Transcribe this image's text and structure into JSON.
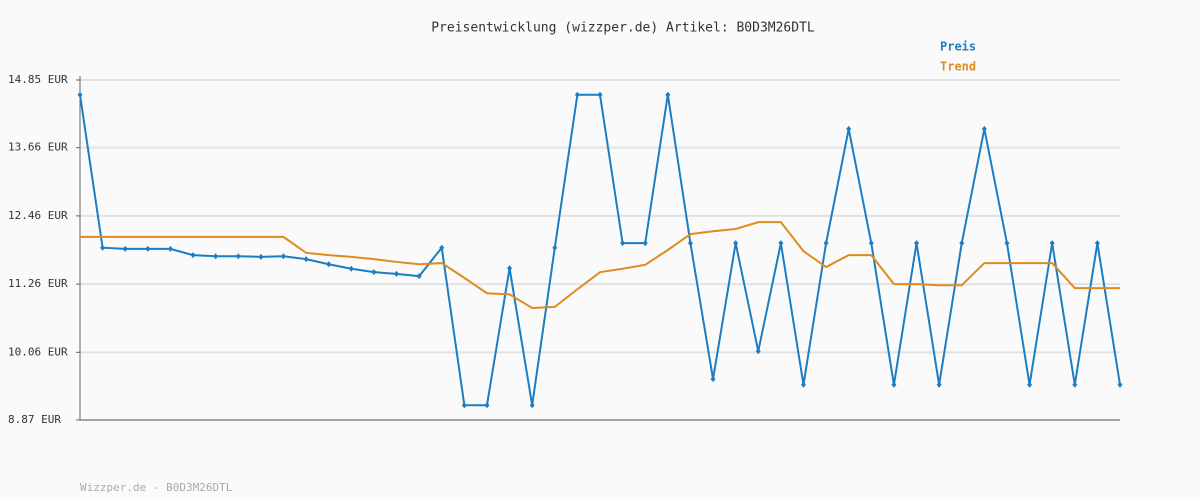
{
  "chart_data": {
    "type": "line",
    "title": "Preisentwicklung (wizzper.de) Artikel: B0D3M26DTL",
    "footer": "Wizzper.de - B0D3M26DTL",
    "categories": [
      null,
      null,
      null,
      null,
      null,
      null,
      null,
      null,
      null,
      null,
      null,
      null,
      null,
      null,
      null,
      null,
      null,
      null,
      null,
      null,
      null,
      null,
      null,
      null,
      null,
      null,
      null,
      null,
      null,
      null,
      null,
      null,
      null,
      null,
      null,
      null,
      null,
      null,
      null,
      null,
      null,
      null,
      null,
      null,
      null,
      null,
      null
    ],
    "series": [
      {
        "name": "Preis",
        "color": "#1b7dc3",
        "markers": true,
        "values": [
          14.59,
          11.9,
          11.88,
          11.88,
          11.88,
          11.77,
          11.75,
          11.75,
          11.74,
          11.75,
          11.7,
          11.61,
          11.53,
          11.47,
          11.44,
          11.4,
          11.9,
          9.13,
          9.13,
          11.54,
          9.13,
          11.9,
          14.59,
          14.59,
          11.98,
          11.98,
          14.59,
          11.98,
          9.59,
          11.98,
          10.08,
          11.98,
          9.49,
          11.98,
          13.99,
          11.98,
          9.49,
          11.98,
          9.49,
          11.98,
          13.99,
          11.98,
          9.49,
          11.98,
          9.49,
          11.98,
          9.49
        ]
      },
      {
        "name": "Trend",
        "color": "#e08a22",
        "markers": false,
        "values": [
          12.09,
          12.09,
          12.09,
          12.09,
          12.09,
          12.09,
          12.09,
          12.09,
          12.09,
          12.09,
          11.81,
          11.77,
          11.74,
          11.7,
          11.65,
          11.61,
          11.63,
          11.37,
          11.1,
          11.08,
          10.84,
          10.86,
          11.17,
          11.47,
          11.53,
          11.6,
          11.86,
          12.14,
          12.19,
          12.23,
          12.35,
          12.35,
          11.84,
          11.56,
          11.77,
          11.77,
          11.26,
          11.26,
          11.24,
          11.24,
          11.63,
          11.63,
          11.63,
          11.63,
          11.19,
          11.19,
          11.19
        ]
      }
    ],
    "ylim": [
      8.87,
      14.85
    ],
    "yticks": [
      {
        "value": 8.87,
        "label": "8.87 EUR"
      },
      {
        "value": 10.06,
        "label": "10.06 EUR"
      },
      {
        "value": 11.26,
        "label": "11.26 EUR"
      },
      {
        "value": 12.46,
        "label": "12.46 EUR"
      },
      {
        "value": 13.66,
        "label": "13.66 EUR"
      },
      {
        "value": 14.85,
        "label": "14.85 EUR"
      }
    ],
    "grid": true,
    "legend": "top-right"
  }
}
